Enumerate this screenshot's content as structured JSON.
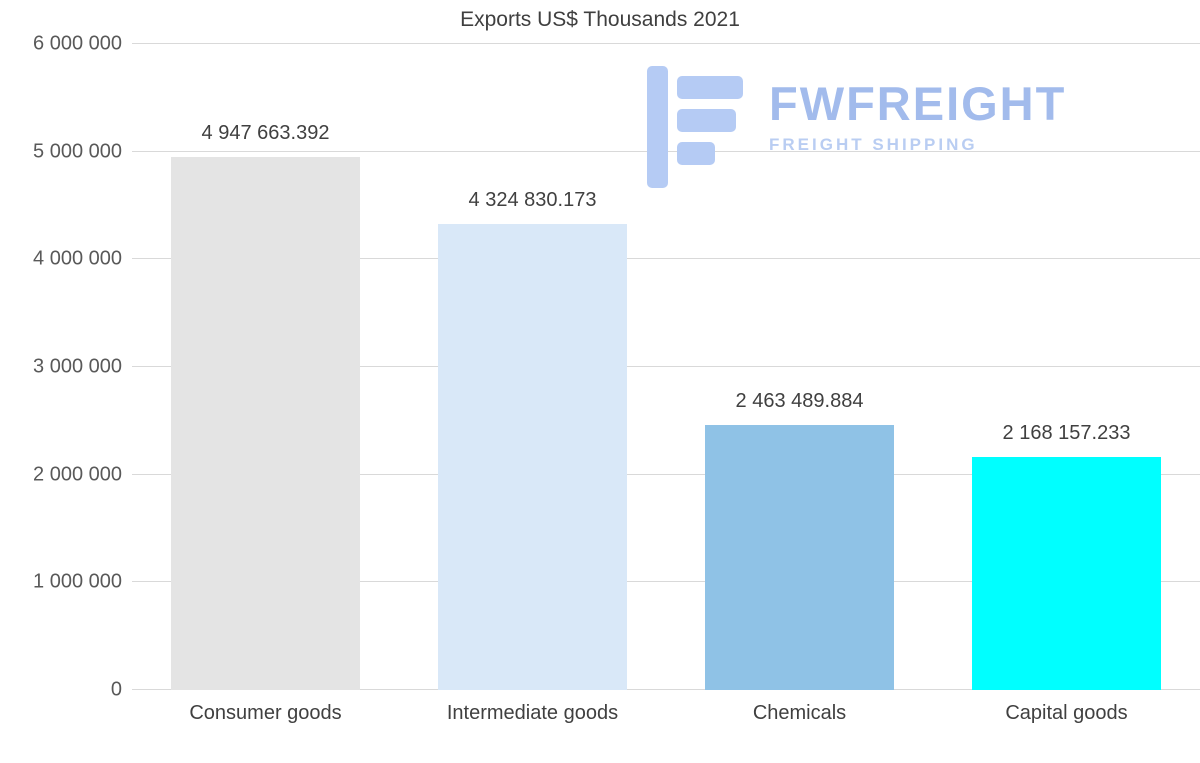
{
  "chart_data": {
    "type": "bar",
    "title": "Exports US$ Thousands 2021",
    "categories": [
      "Consumer goods",
      "Intermediate goods",
      "Chemicals",
      "Capital goods"
    ],
    "values": [
      4947663.392,
      4324830.173,
      2463489.884,
      2168157.233
    ],
    "value_labels": [
      "4 947 663.392",
      "4 324 830.173",
      "2 463 489.884",
      "2 168 157.233"
    ],
    "bar_colors": [
      "#e4e4e4",
      "#d9e8f8",
      "#8fc2e6",
      "#00ffff"
    ],
    "xlabel": "",
    "ylabel": "",
    "ylim": [
      0,
      6000000
    ],
    "y_tick_step": 1000000,
    "y_tick_labels": [
      "0",
      "1 000 000",
      "2 000 000",
      "3 000 000",
      "4 000 000",
      "5 000 000",
      "6 000 000"
    ],
    "grid": "horizontal-major",
    "legend": "none",
    "gridline_color": "#d9d9d9"
  },
  "watermark": {
    "name": "FWFREIGHT",
    "tagline": "FREIGHT SHIPPING",
    "name_color": "#a2bbec",
    "tagline_color": "#b9cdf2"
  }
}
